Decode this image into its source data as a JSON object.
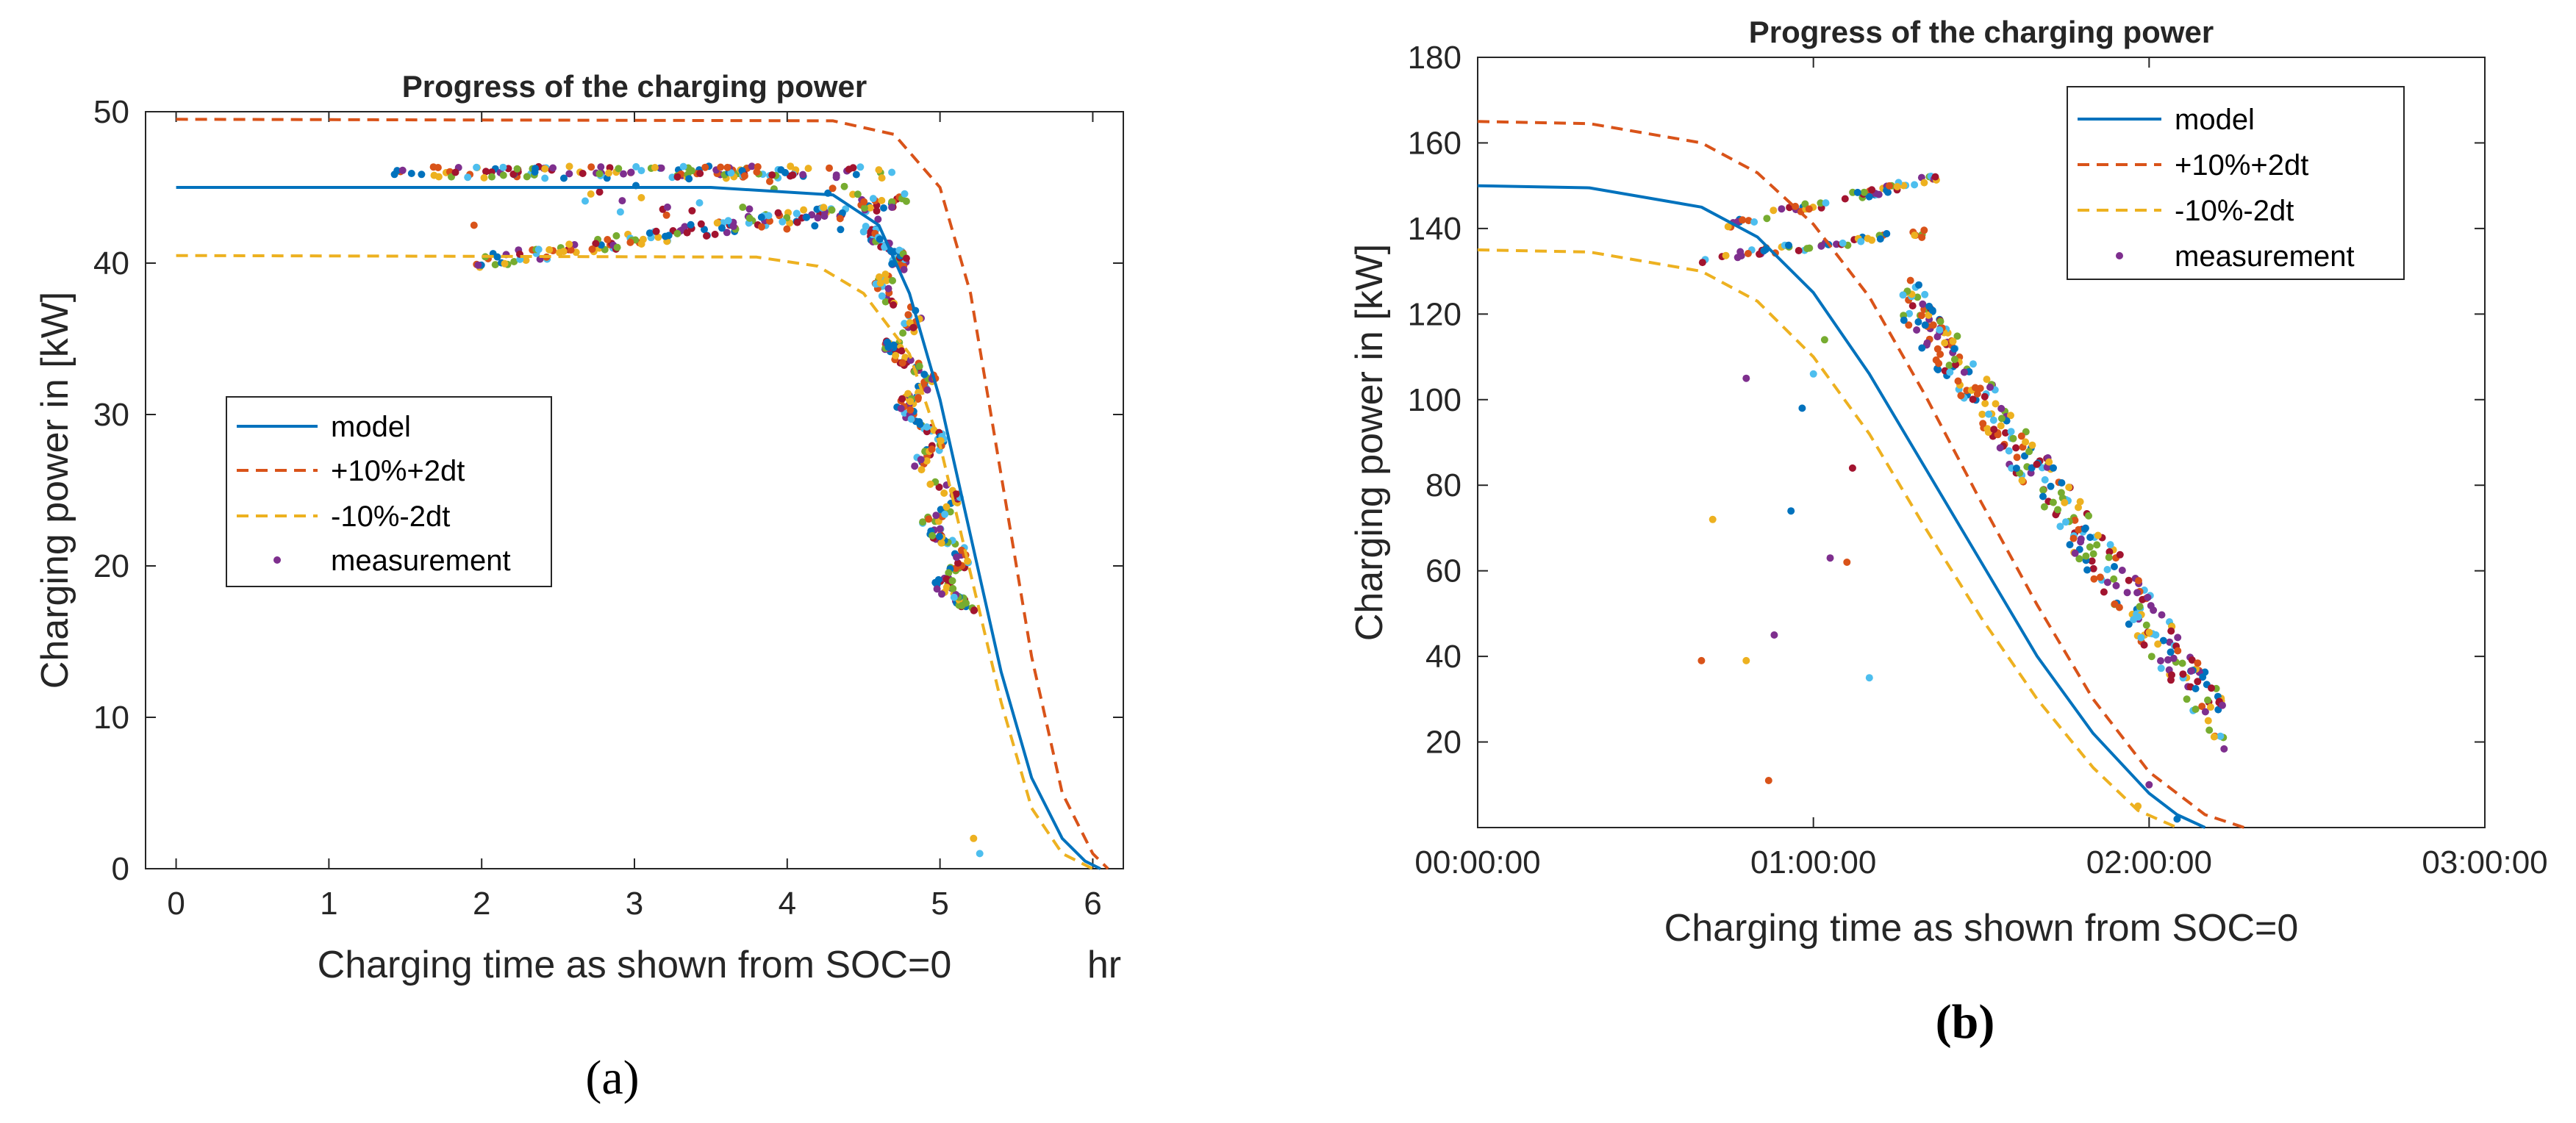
{
  "colors": {
    "model": "#0072BD",
    "upper": "#D95319",
    "lower": "#EDB120",
    "measurement": [
      "#7E2F8E",
      "#0072BD",
      "#D95319",
      "#EDB120",
      "#77AC30",
      "#4DBEEE",
      "#A2142F"
    ]
  },
  "chart_data": [
    {
      "type": "line",
      "panel_label": "(a)",
      "title": "Progress of the charging power",
      "xlabel": "Charging time as shown from SOC=0",
      "x_unit_label": "hr",
      "ylabel": "Charging power in [kW]",
      "xlim": [
        -0.2,
        6.2
      ],
      "ylim": [
        0,
        50
      ],
      "xticks": [
        0,
        1,
        2,
        3,
        4,
        5,
        6
      ],
      "xtick_labels": [
        "0",
        "1",
        "2",
        "3",
        "4",
        "5",
        "6"
      ],
      "yticks": [
        0,
        10,
        20,
        30,
        40,
        50
      ],
      "ytick_labels": [
        "0",
        "10",
        "20",
        "30",
        "40",
        "50"
      ],
      "legend_position": "center-left",
      "series": [
        {
          "name": "model",
          "style": "solid",
          "x": [
            0,
            3.5,
            4.3,
            4.6,
            4.8,
            5.0,
            5.2,
            5.4,
            5.6,
            5.8,
            5.95,
            6.05
          ],
          "y": [
            45,
            45,
            44.5,
            42.5,
            38,
            31,
            22,
            13,
            6,
            2,
            0.5,
            0
          ]
        },
        {
          "name": "+10%+2dt",
          "style": "dashed",
          "x": [
            0,
            4.3,
            4.7,
            5.0,
            5.2,
            5.4,
            5.6,
            5.8,
            6.0,
            6.1
          ],
          "y": [
            49.5,
            49.4,
            48.5,
            45,
            38,
            26,
            14,
            5,
            1,
            0
          ]
        },
        {
          "name": "-10%-2dt",
          "style": "dashed",
          "x": [
            0,
            3.8,
            4.2,
            4.5,
            4.8,
            5.0,
            5.2,
            5.4,
            5.6,
            5.8,
            6.0
          ],
          "y": [
            40.5,
            40.4,
            39.8,
            38,
            34,
            28,
            19.5,
            11,
            4,
            1,
            0
          ]
        },
        {
          "name": "measurement",
          "style": "markers",
          "x": [],
          "y": []
        }
      ]
    },
    {
      "type": "line",
      "panel_label": "(b)",
      "title": "Progress of the charging power",
      "xlabel": "Charging time as shown from SOC=0",
      "ylabel": "Charging power in [kW]",
      "xlim": [
        0,
        180
      ],
      "ylim": [
        0,
        180
      ],
      "xticks": [
        0,
        60,
        120,
        180
      ],
      "xtick_labels": [
        "00:00:00",
        "01:00:00",
        "02:00:00",
        "03:00:00"
      ],
      "yticks": [
        20,
        40,
        60,
        80,
        100,
        120,
        140,
        160,
        180
      ],
      "ytick_labels": [
        "20",
        "40",
        "60",
        "80",
        "100",
        "120",
        "140",
        "160",
        "180"
      ],
      "legend_position": "top-right",
      "series": [
        {
          "name": "model",
          "style": "solid",
          "x": [
            0,
            20,
            40,
            50,
            60,
            70,
            80,
            90,
            100,
            110,
            120,
            125,
            130
          ],
          "y": [
            150,
            149.5,
            145,
            138,
            125,
            106,
            84,
            62,
            40,
            22,
            8,
            3,
            0
          ]
        },
        {
          "name": "+10%+2dt",
          "style": "dashed",
          "x": [
            0,
            20,
            40,
            50,
            60,
            70,
            80,
            90,
            100,
            110,
            120,
            130,
            137
          ],
          "y": [
            165,
            164.5,
            160,
            153,
            141,
            124,
            101,
            76,
            52,
            30,
            13,
            3,
            0
          ]
        },
        {
          "name": "-10%-2dt",
          "style": "dashed",
          "x": [
            0,
            20,
            40,
            50,
            60,
            70,
            80,
            90,
            100,
            110,
            118,
            125
          ],
          "y": [
            135,
            134.5,
            130,
            123,
            110,
            92,
            70,
            49,
            30,
            14,
            4,
            0
          ]
        },
        {
          "name": "measurement",
          "style": "markers",
          "x": [],
          "y": []
        }
      ]
    }
  ]
}
